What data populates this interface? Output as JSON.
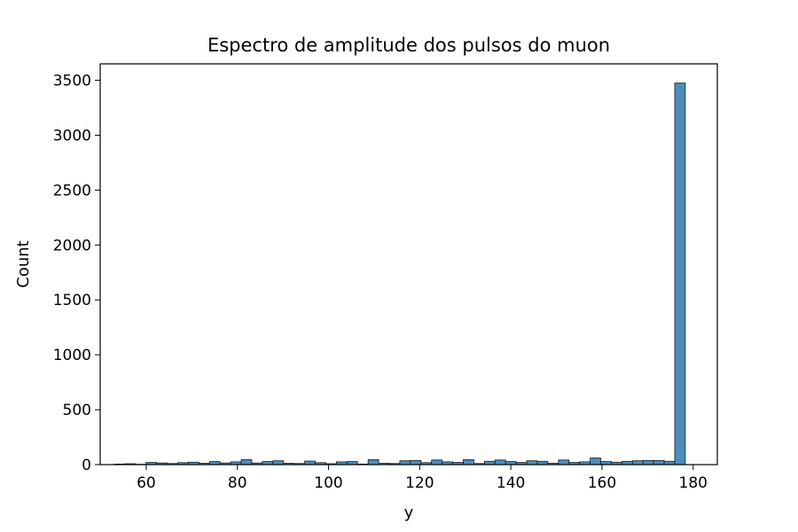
{
  "chart_data": {
    "type": "bar",
    "title": "Espectro de amplitude dos pulsos do muon",
    "xlabel": "y",
    "ylabel": "Count",
    "xlim": [
      49.9,
      185.3
    ],
    "ylim": [
      0,
      3650
    ],
    "xticks": [
      60,
      80,
      100,
      120,
      140,
      160,
      180
    ],
    "yticks": [
      0,
      500,
      1000,
      1500,
      2000,
      2500,
      3000,
      3500
    ],
    "bin_start": 53.0,
    "bin_width": 2.32,
    "values": [
      5,
      8,
      3,
      20,
      15,
      10,
      18,
      22,
      12,
      28,
      15,
      25,
      45,
      15,
      28,
      35,
      12,
      10,
      32,
      18,
      8,
      25,
      28,
      5,
      45,
      12,
      10,
      35,
      38,
      18,
      42,
      25,
      20,
      45,
      10,
      30,
      42,
      28,
      20,
      35,
      30,
      12,
      42,
      20,
      25,
      60,
      28,
      22,
      30,
      35,
      38,
      38,
      30,
      3475
    ],
    "bar_color": "#4c8dbd",
    "bar_edge_color": "#1a1a1a",
    "grid": false
  }
}
